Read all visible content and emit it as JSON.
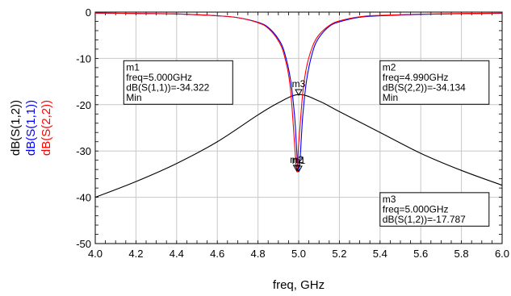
{
  "chart_data": {
    "type": "line",
    "xlabel": "freq, GHz",
    "xlim": [
      4.0,
      6.0
    ],
    "ylim": [
      -50,
      0
    ],
    "xticks": [
      "4.0",
      "4.2",
      "4.4",
      "4.6",
      "4.8",
      "5.0",
      "5.2",
      "5.4",
      "5.6",
      "5.8",
      "6.0"
    ],
    "yticks": [
      "0",
      "-10",
      "-20",
      "-30",
      "-40",
      "-50"
    ],
    "grid": true,
    "ylabels": [
      {
        "text": "dB(S(1,2))",
        "color": "#000000"
      },
      {
        "text": "dB(S(1,1))",
        "color": "#0000ff"
      },
      {
        "text": "dB(S(2,2))",
        "color": "#ff0000"
      }
    ],
    "series": [
      {
        "name": "dB(S(1,2))",
        "color": "#000000",
        "x": [
          4.0,
          4.2,
          4.4,
          4.6,
          4.8,
          4.9,
          5.0,
          5.1,
          5.2,
          5.4,
          5.6,
          5.8,
          6.0
        ],
        "y": [
          -40.0,
          -36.6,
          -32.7,
          -28.0,
          -22.2,
          -19.6,
          -17.8,
          -19.2,
          -21.5,
          -26.0,
          -30.5,
          -34.2,
          -37.4
        ]
      },
      {
        "name": "dB(S(1,1))",
        "color": "#0000ff",
        "x": [
          4.0,
          4.2,
          4.4,
          4.6,
          4.7,
          4.8,
          4.85,
          4.9,
          4.93,
          4.96,
          4.98,
          5.0,
          5.02,
          5.04,
          5.07,
          5.1,
          5.15,
          5.2,
          5.3,
          5.4,
          5.6,
          5.8,
          6.0
        ],
        "y": [
          -0.2,
          -0.3,
          -0.4,
          -0.8,
          -1.2,
          -2.2,
          -3.3,
          -5.8,
          -8.7,
          -14.6,
          -22.5,
          -34.3,
          -22.4,
          -14.4,
          -8.4,
          -5.5,
          -3.1,
          -2.1,
          -1.1,
          -0.8,
          -0.5,
          -0.35,
          -0.25
        ]
      },
      {
        "name": "dB(S(2,2))",
        "color": "#ff0000",
        "x": [
          4.0,
          4.2,
          4.4,
          4.6,
          4.7,
          4.8,
          4.85,
          4.9,
          4.93,
          4.96,
          4.99,
          5.0,
          5.02,
          5.04,
          5.07,
          5.1,
          5.15,
          5.2,
          5.3,
          5.4,
          5.6,
          5.8,
          6.0
        ],
        "y": [
          -0.2,
          -0.3,
          -0.4,
          -0.8,
          -1.2,
          -2.3,
          -3.5,
          -6.2,
          -9.5,
          -16.8,
          -34.1,
          -28.5,
          -17.5,
          -11.6,
          -7.2,
          -4.9,
          -2.9,
          -1.9,
          -1.0,
          -0.7,
          -0.45,
          -0.3,
          -0.22
        ]
      }
    ],
    "markers": [
      {
        "name": "m1",
        "x": 5.0,
        "y": -34.322,
        "lines": [
          "m1",
          "freq=5.000GHz",
          "dB(S(1,1))=-34.322",
          "Min"
        ],
        "box_x": 4.14,
        "box_y": -10.5
      },
      {
        "name": "m2",
        "x": 4.99,
        "y": -34.134,
        "lines": [
          "m2",
          "freq=4.990GHz",
          "dB(S(2,2))=-34.134",
          "Min"
        ],
        "box_x": 5.4,
        "box_y": -10.5
      },
      {
        "name": "m3",
        "x": 5.0,
        "y": -17.787,
        "lines": [
          "m3",
          "freq=5.000GHz",
          "dB(S(1,2))=-17.787"
        ],
        "box_x": 5.4,
        "box_y": -39.0
      }
    ]
  }
}
